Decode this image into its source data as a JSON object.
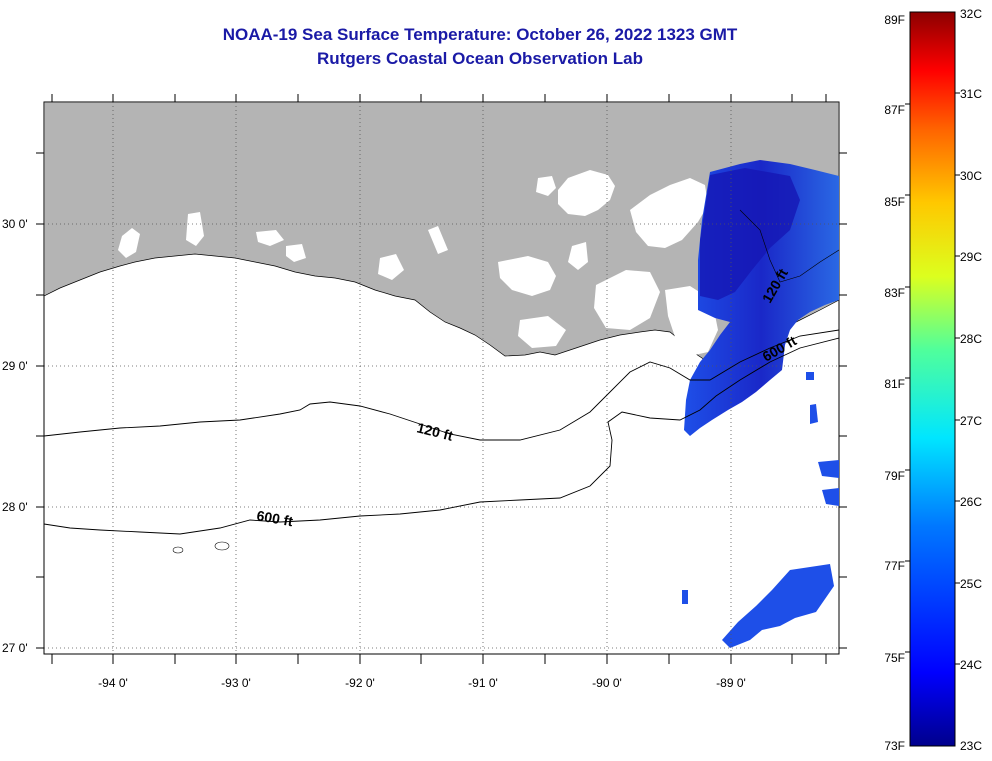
{
  "title": {
    "line1": "NOAA-19 Sea Surface Temperature:  October 26, 2022 1323 GMT",
    "line2": "Rutgers Coastal Ocean Observation Lab"
  },
  "map": {
    "lon_ticks": [
      "-94 0'",
      "-93 0'",
      "-92 0'",
      "-91 0'",
      "-90 0'",
      "-89 0'"
    ],
    "lat_ticks": [
      "30 0'",
      "29 0'",
      "28 0'",
      "27 0'"
    ],
    "contours": [
      {
        "label": "120 ft"
      },
      {
        "label": "600 ft"
      },
      {
        "label": "120 ft"
      },
      {
        "label": "600 ft"
      }
    ],
    "colors": {
      "land": "#b4b4b4",
      "cloud": "#ffffff",
      "sst_dark": "#1919c8",
      "sst_mid": "#1e50e6",
      "sst_light": "#2896f0"
    }
  },
  "colorbar": {
    "f_labels": [
      "89F",
      "87F",
      "85F",
      "83F",
      "81F",
      "79F",
      "77F",
      "75F",
      "73F"
    ],
    "c_labels": [
      "32C",
      "31C",
      "30C",
      "29C",
      "28C",
      "27C",
      "26C",
      "25C",
      "24C",
      "23C"
    ],
    "colors": [
      "#00008c",
      "#0000ff",
      "#0078ff",
      "#00e6ff",
      "#50ff9b",
      "#dcff1e",
      "#ffc800",
      "#ff6400",
      "#ff0000",
      "#8c0000"
    ]
  }
}
